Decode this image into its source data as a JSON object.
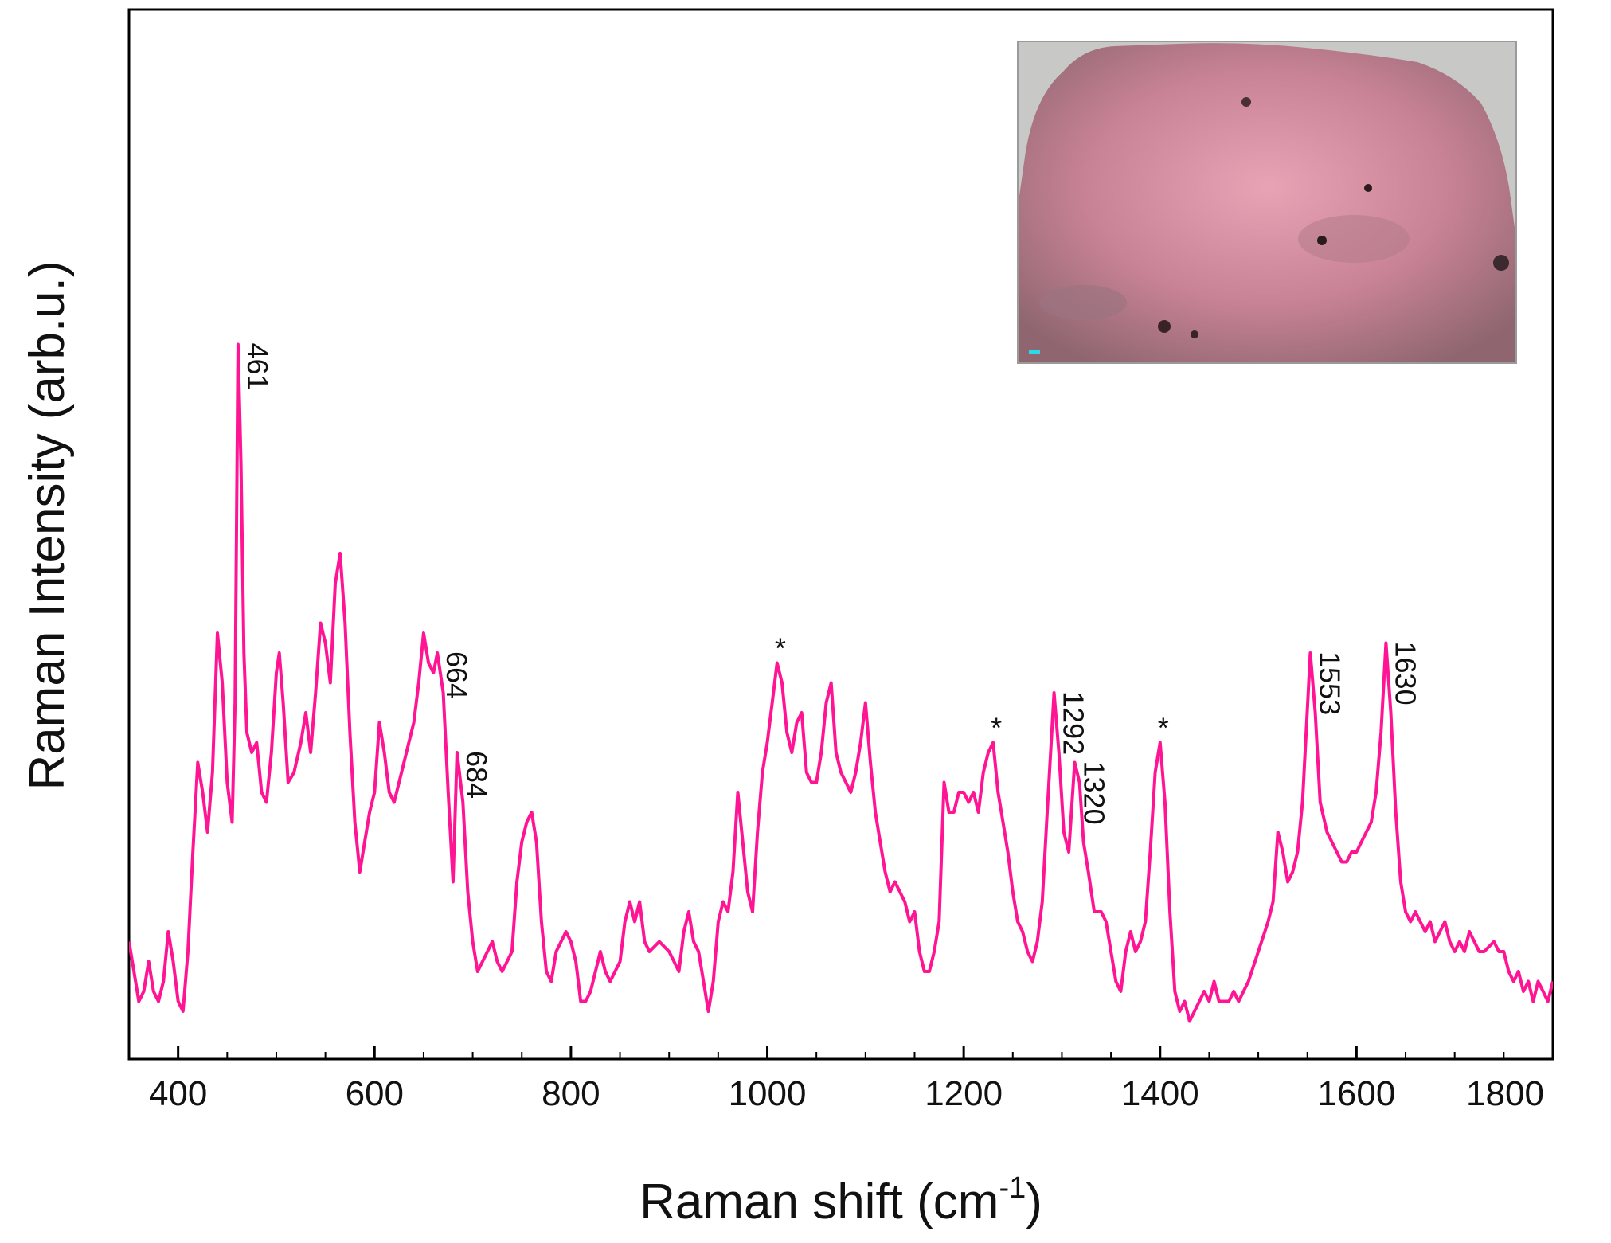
{
  "chart_data": {
    "type": "line",
    "title": "",
    "xlabel": "Raman shift (cm",
    "xlabel_superscript": "-1",
    "xlabel_suffix": ")",
    "ylabel": "Raman Intensity (arb.u.)",
    "xlim": [
      350,
      1800
    ],
    "ylim": [
      0,
      1
    ],
    "x_ticks": [
      400,
      600,
      800,
      1000,
      1200,
      1400,
      1600,
      1800
    ],
    "grid": false,
    "legend": "none",
    "line_color": "#ff1493",
    "series": [
      {
        "values": [
          [
            350,
            0.11
          ],
          [
            355,
            0.08
          ],
          [
            360,
            0.05
          ],
          [
            365,
            0.06
          ],
          [
            370,
            0.09
          ],
          [
            375,
            0.06
          ],
          [
            380,
            0.05
          ],
          [
            385,
            0.07
          ],
          [
            390,
            0.12
          ],
          [
            395,
            0.09
          ],
          [
            400,
            0.05
          ],
          [
            405,
            0.04
          ],
          [
            410,
            0.1
          ],
          [
            415,
            0.2
          ],
          [
            420,
            0.29
          ],
          [
            425,
            0.26
          ],
          [
            430,
            0.22
          ],
          [
            435,
            0.28
          ],
          [
            440,
            0.42
          ],
          [
            445,
            0.37
          ],
          [
            450,
            0.27
          ],
          [
            455,
            0.23
          ],
          [
            458,
            0.35
          ],
          [
            461,
            0.71
          ],
          [
            464,
            0.59
          ],
          [
            467,
            0.4
          ],
          [
            470,
            0.32
          ],
          [
            475,
            0.3
          ],
          [
            480,
            0.31
          ],
          [
            485,
            0.26
          ],
          [
            490,
            0.25
          ],
          [
            495,
            0.3
          ],
          [
            500,
            0.38
          ],
          [
            503,
            0.4
          ],
          [
            507,
            0.35
          ],
          [
            512,
            0.27
          ],
          [
            518,
            0.28
          ],
          [
            525,
            0.31
          ],
          [
            530,
            0.34
          ],
          [
            535,
            0.3
          ],
          [
            540,
            0.36
          ],
          [
            545,
            0.43
          ],
          [
            550,
            0.41
          ],
          [
            555,
            0.37
          ],
          [
            560,
            0.47
          ],
          [
            565,
            0.5
          ],
          [
            570,
            0.43
          ],
          [
            575,
            0.32
          ],
          [
            580,
            0.23
          ],
          [
            585,
            0.18
          ],
          [
            590,
            0.21
          ],
          [
            595,
            0.24
          ],
          [
            600,
            0.26
          ],
          [
            605,
            0.33
          ],
          [
            610,
            0.3
          ],
          [
            615,
            0.26
          ],
          [
            620,
            0.25
          ],
          [
            625,
            0.27
          ],
          [
            630,
            0.29
          ],
          [
            635,
            0.31
          ],
          [
            640,
            0.33
          ],
          [
            645,
            0.37
          ],
          [
            650,
            0.42
          ],
          [
            655,
            0.39
          ],
          [
            660,
            0.38
          ],
          [
            664,
            0.4
          ],
          [
            670,
            0.36
          ],
          [
            675,
            0.26
          ],
          [
            680,
            0.17
          ],
          [
            684,
            0.3
          ],
          [
            690,
            0.25
          ],
          [
            695,
            0.16
          ],
          [
            700,
            0.11
          ],
          [
            705,
            0.08
          ],
          [
            710,
            0.09
          ],
          [
            715,
            0.1
          ],
          [
            720,
            0.11
          ],
          [
            725,
            0.09
          ],
          [
            730,
            0.08
          ],
          [
            740,
            0.1
          ],
          [
            745,
            0.17
          ],
          [
            750,
            0.21
          ],
          [
            755,
            0.23
          ],
          [
            760,
            0.24
          ],
          [
            765,
            0.21
          ],
          [
            770,
            0.13
          ],
          [
            775,
            0.08
          ],
          [
            780,
            0.07
          ],
          [
            785,
            0.1
          ],
          [
            790,
            0.11
          ],
          [
            795,
            0.12
          ],
          [
            800,
            0.11
          ],
          [
            805,
            0.09
          ],
          [
            810,
            0.05
          ],
          [
            815,
            0.05
          ],
          [
            820,
            0.06
          ],
          [
            830,
            0.1
          ],
          [
            835,
            0.08
          ],
          [
            840,
            0.07
          ],
          [
            850,
            0.09
          ],
          [
            855,
            0.13
          ],
          [
            860,
            0.15
          ],
          [
            865,
            0.13
          ],
          [
            870,
            0.15
          ],
          [
            875,
            0.11
          ],
          [
            880,
            0.1
          ],
          [
            890,
            0.11
          ],
          [
            900,
            0.1
          ],
          [
            905,
            0.09
          ],
          [
            910,
            0.08
          ],
          [
            915,
            0.12
          ],
          [
            920,
            0.14
          ],
          [
            925,
            0.11
          ],
          [
            930,
            0.1
          ],
          [
            935,
            0.07
          ],
          [
            940,
            0.04
          ],
          [
            945,
            0.07
          ],
          [
            950,
            0.13
          ],
          [
            955,
            0.15
          ],
          [
            960,
            0.14
          ],
          [
            965,
            0.18
          ],
          [
            970,
            0.26
          ],
          [
            975,
            0.21
          ],
          [
            980,
            0.16
          ],
          [
            985,
            0.14
          ],
          [
            990,
            0.22
          ],
          [
            995,
            0.28
          ],
          [
            1000,
            0.31
          ],
          [
            1005,
            0.35
          ],
          [
            1010,
            0.39
          ],
          [
            1015,
            0.37
          ],
          [
            1020,
            0.32
          ],
          [
            1025,
            0.3
          ],
          [
            1030,
            0.33
          ],
          [
            1035,
            0.34
          ],
          [
            1040,
            0.28
          ],
          [
            1045,
            0.27
          ],
          [
            1050,
            0.27
          ],
          [
            1055,
            0.3
          ],
          [
            1060,
            0.35
          ],
          [
            1065,
            0.37
          ],
          [
            1070,
            0.3
          ],
          [
            1075,
            0.28
          ],
          [
            1080,
            0.27
          ],
          [
            1085,
            0.26
          ],
          [
            1090,
            0.28
          ],
          [
            1095,
            0.31
          ],
          [
            1100,
            0.35
          ],
          [
            1105,
            0.29
          ],
          [
            1110,
            0.24
          ],
          [
            1115,
            0.21
          ],
          [
            1120,
            0.18
          ],
          [
            1125,
            0.16
          ],
          [
            1130,
            0.17
          ],
          [
            1140,
            0.15
          ],
          [
            1145,
            0.13
          ],
          [
            1150,
            0.14
          ],
          [
            1155,
            0.1
          ],
          [
            1160,
            0.08
          ],
          [
            1165,
            0.08
          ],
          [
            1170,
            0.1
          ],
          [
            1175,
            0.13
          ],
          [
            1180,
            0.27
          ],
          [
            1185,
            0.24
          ],
          [
            1190,
            0.24
          ],
          [
            1195,
            0.26
          ],
          [
            1200,
            0.26
          ],
          [
            1205,
            0.25
          ],
          [
            1210,
            0.26
          ],
          [
            1215,
            0.24
          ],
          [
            1220,
            0.28
          ],
          [
            1225,
            0.3
          ],
          [
            1230,
            0.31
          ],
          [
            1235,
            0.26
          ],
          [
            1240,
            0.23
          ],
          [
            1245,
            0.2
          ],
          [
            1250,
            0.16
          ],
          [
            1255,
            0.13
          ],
          [
            1260,
            0.12
          ],
          [
            1265,
            0.1
          ],
          [
            1270,
            0.09
          ],
          [
            1275,
            0.11
          ],
          [
            1280,
            0.15
          ],
          [
            1285,
            0.24
          ],
          [
            1292,
            0.36
          ],
          [
            1297,
            0.3
          ],
          [
            1302,
            0.22
          ],
          [
            1307,
            0.2
          ],
          [
            1313,
            0.29
          ],
          [
            1318,
            0.27
          ],
          [
            1322,
            0.21
          ],
          [
            1327,
            0.18
          ],
          [
            1333,
            0.14
          ],
          [
            1340,
            0.14
          ],
          [
            1345,
            0.13
          ],
          [
            1350,
            0.1
          ],
          [
            1355,
            0.07
          ],
          [
            1360,
            0.06
          ],
          [
            1365,
            0.1
          ],
          [
            1370,
            0.12
          ],
          [
            1375,
            0.1
          ],
          [
            1380,
            0.11
          ],
          [
            1385,
            0.13
          ],
          [
            1390,
            0.2
          ],
          [
            1395,
            0.28
          ],
          [
            1400,
            0.31
          ],
          [
            1405,
            0.25
          ],
          [
            1410,
            0.14
          ],
          [
            1415,
            0.06
          ],
          [
            1420,
            0.04
          ],
          [
            1425,
            0.05
          ],
          [
            1430,
            0.03
          ],
          [
            1440,
            0.05
          ],
          [
            1445,
            0.06
          ],
          [
            1450,
            0.05
          ],
          [
            1455,
            0.07
          ],
          [
            1460,
            0.05
          ],
          [
            1470,
            0.05
          ],
          [
            1475,
            0.06
          ],
          [
            1480,
            0.05
          ],
          [
            1490,
            0.07
          ],
          [
            1500,
            0.1
          ],
          [
            1510,
            0.13
          ],
          [
            1515,
            0.15
          ],
          [
            1520,
            0.22
          ],
          [
            1525,
            0.2
          ],
          [
            1530,
            0.17
          ],
          [
            1535,
            0.18
          ],
          [
            1540,
            0.2
          ],
          [
            1545,
            0.25
          ],
          [
            1553,
            0.4
          ],
          [
            1558,
            0.34
          ],
          [
            1563,
            0.25
          ],
          [
            1570,
            0.22
          ],
          [
            1580,
            0.2
          ],
          [
            1585,
            0.19
          ],
          [
            1590,
            0.19
          ],
          [
            1595,
            0.2
          ],
          [
            1600,
            0.2
          ],
          [
            1605,
            0.21
          ],
          [
            1610,
            0.22
          ],
          [
            1615,
            0.23
          ],
          [
            1620,
            0.26
          ],
          [
            1625,
            0.32
          ],
          [
            1630,
            0.41
          ],
          [
            1635,
            0.34
          ],
          [
            1640,
            0.24
          ],
          [
            1645,
            0.17
          ],
          [
            1650,
            0.14
          ],
          [
            1655,
            0.13
          ],
          [
            1660,
            0.14
          ],
          [
            1665,
            0.13
          ],
          [
            1670,
            0.12
          ],
          [
            1675,
            0.13
          ],
          [
            1680,
            0.11
          ],
          [
            1685,
            0.12
          ],
          [
            1690,
            0.13
          ],
          [
            1695,
            0.11
          ],
          [
            1700,
            0.1
          ],
          [
            1705,
            0.11
          ],
          [
            1710,
            0.1
          ],
          [
            1715,
            0.12
          ],
          [
            1720,
            0.11
          ],
          [
            1725,
            0.1
          ],
          [
            1730,
            0.1
          ],
          [
            1740,
            0.11
          ],
          [
            1745,
            0.1
          ],
          [
            1750,
            0.1
          ],
          [
            1755,
            0.08
          ],
          [
            1760,
            0.07
          ],
          [
            1765,
            0.08
          ],
          [
            1770,
            0.06
          ],
          [
            1775,
            0.07
          ],
          [
            1780,
            0.05
          ],
          [
            1785,
            0.07
          ],
          [
            1790,
            0.06
          ],
          [
            1795,
            0.05
          ],
          [
            1800,
            0.07
          ]
        ]
      }
    ],
    "annotations": [
      {
        "text": "461",
        "x": 461,
        "y": 0.71,
        "rotate": true
      },
      {
        "text": "664",
        "x": 664,
        "y": 0.4,
        "rotate": true
      },
      {
        "text": "684",
        "x": 684,
        "y": 0.3,
        "rotate": true
      },
      {
        "text": "*",
        "x": 1010,
        "y": 0.39,
        "rotate": false
      },
      {
        "text": "*",
        "x": 1230,
        "y": 0.31,
        "rotate": false
      },
      {
        "text": "1292",
        "x": 1292,
        "y": 0.36,
        "rotate": true
      },
      {
        "text": "1320",
        "x": 1313,
        "y": 0.29,
        "rotate": true
      },
      {
        "text": "*",
        "x": 1400,
        "y": 0.31,
        "rotate": false
      },
      {
        "text": "1553",
        "x": 1553,
        "y": 0.4,
        "rotate": true
      },
      {
        "text": "1630",
        "x": 1630,
        "y": 0.41,
        "rotate": true
      }
    ],
    "inset": {
      "position": "top-right",
      "base_color": "#c98396"
    }
  }
}
